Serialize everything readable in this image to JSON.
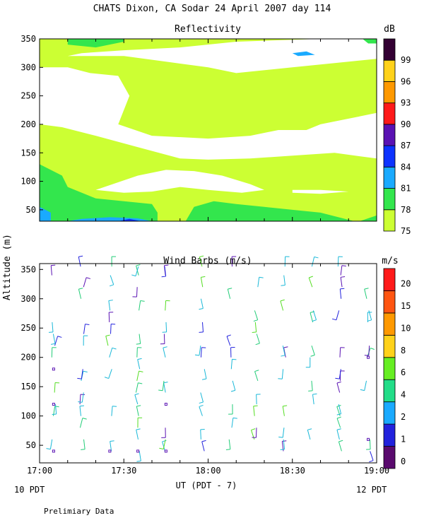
{
  "title": "CHATS Dixon, CA  Sodar  24 April 2007  day 114",
  "footer_left": "10 PDT",
  "footer_right": "12 PDT",
  "note": "Prelimiary Data",
  "shared_ylabel": "Altitude (m)",
  "colors": {
    "c75": "#ccff33",
    "c78": "#33e64d",
    "c81": "#1aaaff",
    "c84": "#0d33ff",
    "c87": "#5a12b3",
    "c90": "#ff1a1a",
    "c93": "#ff9900",
    "c96": "#ffd21a",
    "c99": "#330033"
  },
  "chart_data": [
    {
      "type": "heatmap",
      "title": "Reflectivity",
      "colorbar_unit": "dB",
      "colorbar_ticks": [
        "75",
        "78",
        "81",
        "84",
        "87",
        "90",
        "93",
        "96",
        "99"
      ],
      "y_ticks": [
        "50",
        "100",
        "150",
        "200",
        "250",
        "300",
        "350"
      ],
      "ylim": [
        30,
        350
      ],
      "xlim": [
        0,
        120
      ],
      "regions_description": "contour fills by level",
      "regions": [
        {
          "level": "75",
          "pts": [
            [
              0,
              350
            ],
            [
              120,
              350
            ],
            [
              120,
              30
            ],
            [
              0,
              30
            ]
          ]
        },
        {
          "level": "white",
          "pts": [
            [
              0,
              300
            ],
            [
              10,
              300
            ],
            [
              18,
              290
            ],
            [
              28,
              285
            ],
            [
              32,
              250
            ],
            [
              28,
              200
            ],
            [
              40,
              180
            ],
            [
              60,
              175
            ],
            [
              75,
              180
            ],
            [
              85,
              190
            ],
            [
              95,
              190
            ],
            [
              100,
              200
            ],
            [
              110,
              210
            ],
            [
              120,
              220
            ],
            [
              120,
              140
            ],
            [
              105,
              150
            ],
            [
              90,
              145
            ],
            [
              75,
              140
            ],
            [
              60,
              138
            ],
            [
              50,
              140
            ],
            [
              35,
              160
            ],
            [
              20,
              180
            ],
            [
              8,
              195
            ],
            [
              0,
              200
            ]
          ]
        },
        {
          "level": "white",
          "pts": [
            [
              10,
              320
            ],
            [
              30,
              320
            ],
            [
              45,
              310
            ],
            [
              60,
              300
            ],
            [
              70,
              290
            ],
            [
              90,
              300
            ],
            [
              110,
              310
            ],
            [
              120,
              315
            ],
            [
              120,
              350
            ],
            [
              100,
              350
            ],
            [
              70,
              345
            ],
            [
              50,
              335
            ],
            [
              30,
              330
            ],
            [
              15,
              325
            ]
          ]
        },
        {
          "level": "white",
          "pts": [
            [
              20,
              85
            ],
            [
              35,
              110
            ],
            [
              45,
              120
            ],
            [
              55,
              118
            ],
            [
              65,
              110
            ],
            [
              75,
              95
            ],
            [
              80,
              85
            ],
            [
              72,
              80
            ],
            [
              60,
              85
            ],
            [
              50,
              90
            ],
            [
              40,
              82
            ],
            [
              30,
              80
            ]
          ]
        },
        {
          "level": "white",
          "pts": [
            [
              90,
              85
            ],
            [
              100,
              85
            ],
            [
              110,
              82
            ],
            [
              100,
              78
            ],
            [
              90,
              80
            ]
          ]
        },
        {
          "level": "78",
          "pts": [
            [
              0,
              130
            ],
            [
              8,
              110
            ],
            [
              10,
              90
            ],
            [
              20,
              70
            ],
            [
              40,
              60
            ],
            [
              42,
              45
            ],
            [
              42,
              30
            ],
            [
              0,
              30
            ]
          ]
        },
        {
          "level": "78",
          "pts": [
            [
              10,
              350
            ],
            [
              30,
              350
            ],
            [
              30,
              345
            ],
            [
              20,
              335
            ],
            [
              10,
              340
            ]
          ]
        },
        {
          "level": "78",
          "pts": [
            [
              52,
              30
            ],
            [
              55,
              55
            ],
            [
              62,
              65
            ],
            [
              70,
              60
            ],
            [
              80,
              55
            ],
            [
              90,
              50
            ],
            [
              100,
              45
            ],
            [
              108,
              35
            ],
            [
              112,
              30
            ]
          ]
        },
        {
          "level": "78",
          "pts": [
            [
              114,
              30
            ],
            [
              120,
              40
            ],
            [
              120,
              30
            ]
          ]
        },
        {
          "level": "81",
          "pts": [
            [
              0,
              30
            ],
            [
              0,
              55
            ],
            [
              4,
              45
            ],
            [
              4,
              30
            ]
          ]
        },
        {
          "level": "81",
          "pts": [
            [
              10,
              30
            ],
            [
              40,
              30
            ],
            [
              35,
              35
            ],
            [
              25,
              37
            ],
            [
              15,
              34
            ]
          ]
        },
        {
          "level": "84",
          "pts": [
            [
              28,
              30
            ],
            [
              32,
              34
            ],
            [
              36,
              30
            ]
          ]
        },
        {
          "level": "81",
          "pts": [
            [
              90,
              325
            ],
            [
              95,
              328
            ],
            [
              98,
              322
            ],
            [
              92,
              320
            ]
          ]
        },
        {
          "level": "78",
          "pts": [
            [
              115,
              350
            ],
            [
              120,
              350
            ],
            [
              120,
              342
            ],
            [
              117,
              342
            ]
          ]
        }
      ]
    },
    {
      "type": "scatter",
      "title": "Wind Barbs (m/s)",
      "colorbar_unit": "m/s",
      "colorbar_ticks": [
        "0",
        "1",
        "2",
        "4",
        "6",
        "8",
        "10",
        "15",
        "20"
      ],
      "x_ticks": [
        "17:00",
        "17:30",
        "18:00",
        "18:30",
        "19:00"
      ],
      "xlabel": "UT  (PDT - 7)",
      "y_ticks": [
        "50",
        "100",
        "150",
        "200",
        "250",
        "300",
        "350"
      ],
      "ylim": [
        20,
        360
      ],
      "xlim": [
        0,
        120
      ],
      "barb_columns": [
        5,
        15,
        25,
        35,
        45,
        58,
        68,
        77,
        87,
        97,
        107,
        117
      ],
      "barb_levels": [
        40,
        60,
        80,
        100,
        120,
        140,
        160,
        180,
        200,
        220,
        240,
        260,
        280,
        300,
        320,
        340,
        355
      ]
    }
  ]
}
